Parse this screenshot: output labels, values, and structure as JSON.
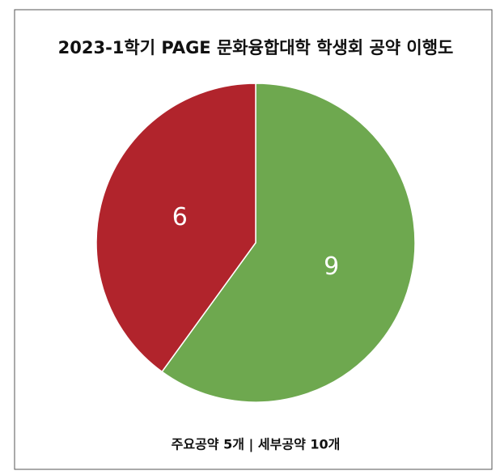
{
  "chart_data": {
    "type": "pie",
    "title": "2023-1학기 PAGE 문화융합대학 학생회 공약 이행도",
    "subtitle": "주요공약 5개 | 세부공약 10개",
    "values": [
      9,
      6
    ],
    "colors": [
      "#6ea84f",
      "#b1242c"
    ]
  }
}
